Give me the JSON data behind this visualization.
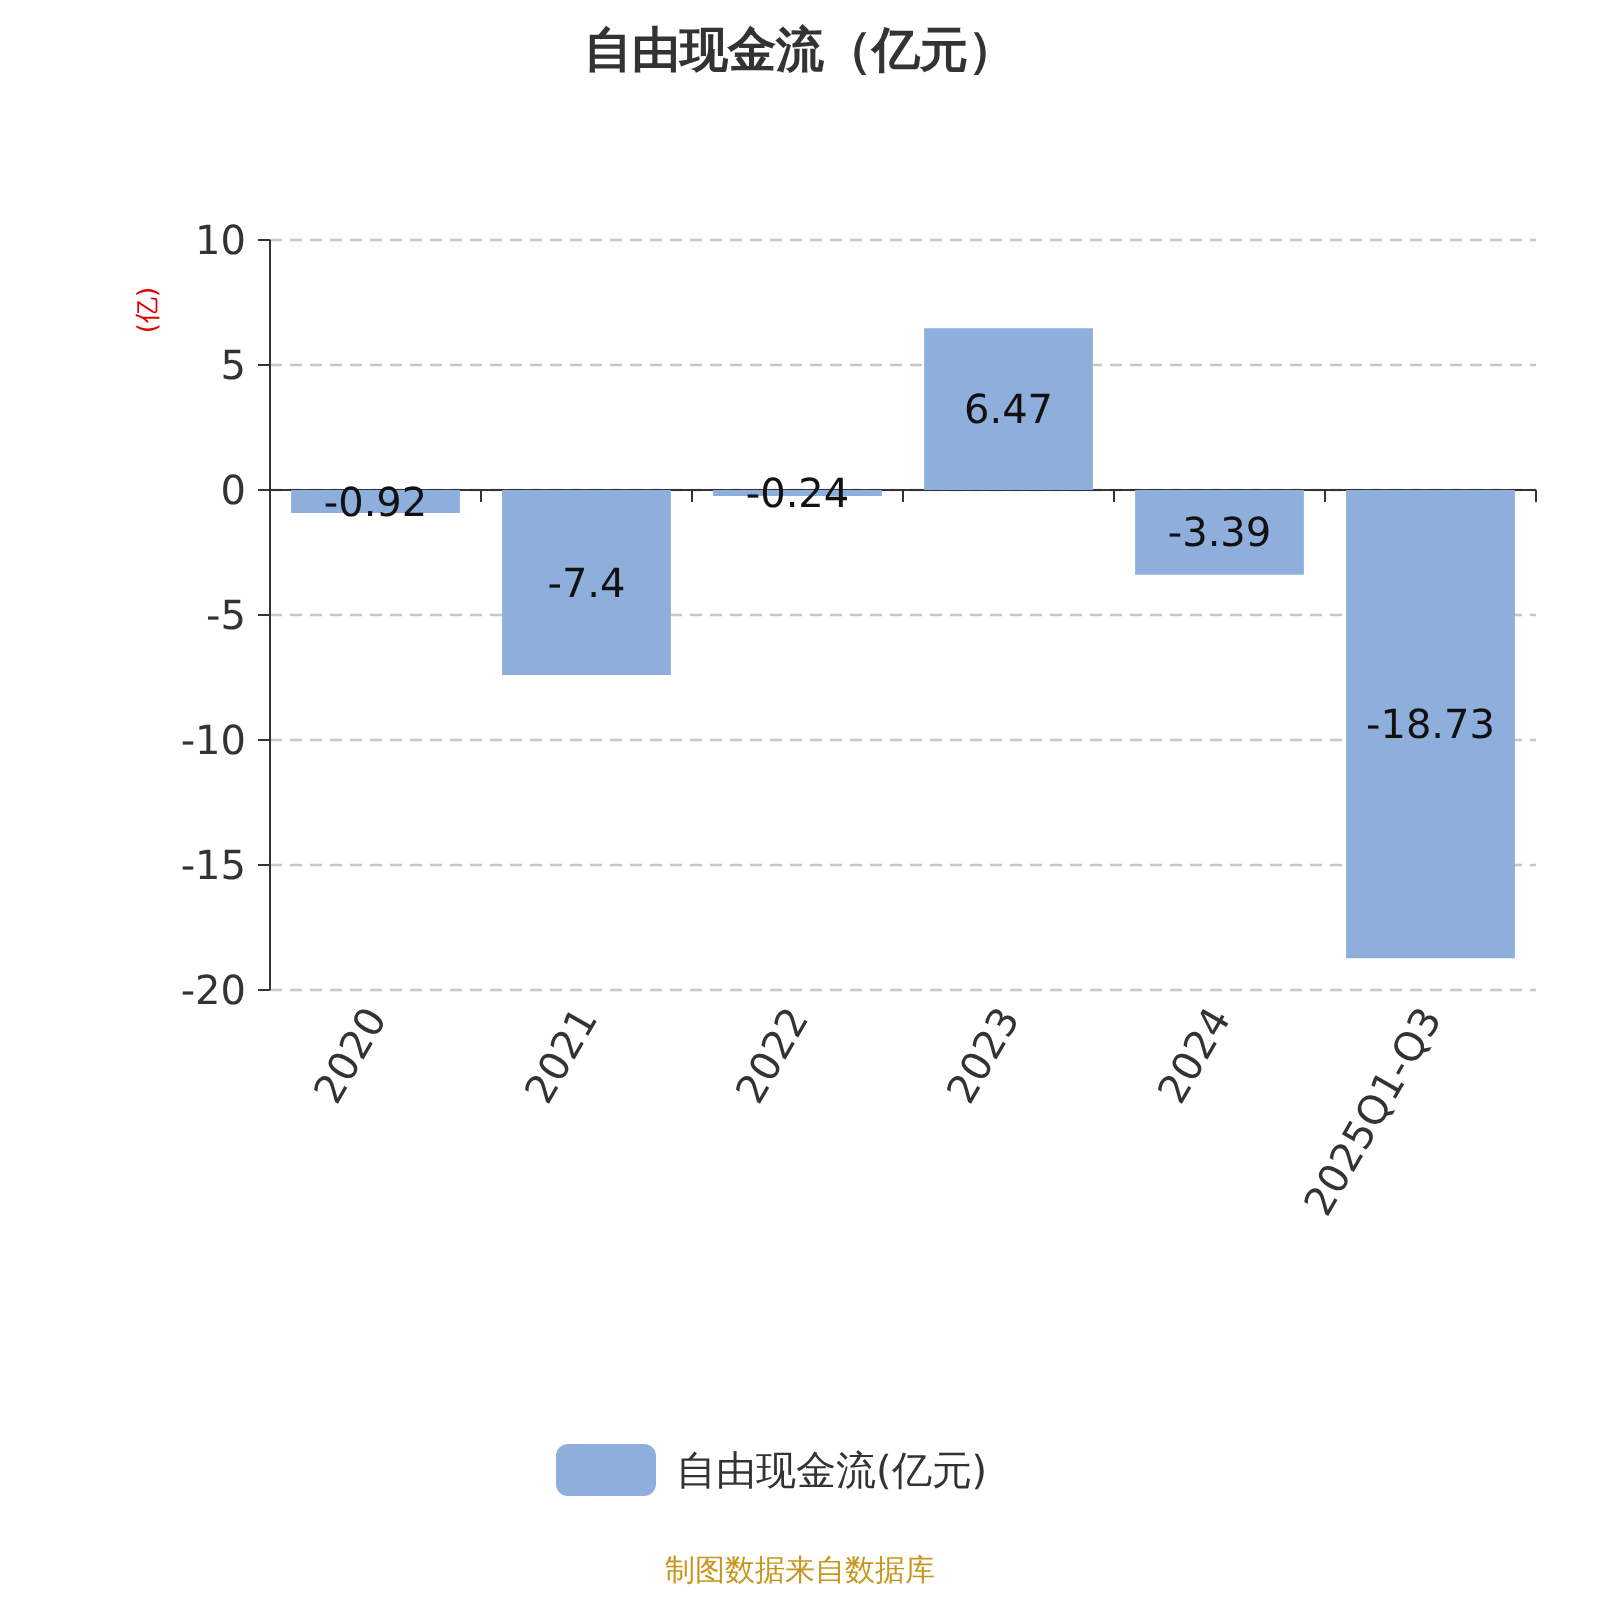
{
  "chart_data": {
    "type": "bar",
    "title": "自由现金流（亿元）",
    "ylabel": "(亿)",
    "categories": [
      "2020",
      "2021",
      "2022",
      "2023",
      "2024",
      "2025Q1-Q3"
    ],
    "series": [
      {
        "name": "自由现金流(亿元)",
        "color": "#8eaedb",
        "values": [
          -0.92,
          -7.4,
          -0.24,
          6.47,
          -3.39,
          -18.73
        ]
      }
    ],
    "ylim": [
      -20,
      10
    ],
    "yticks": [
      -20,
      -15,
      -10,
      -5,
      0,
      5,
      10
    ],
    "grid": "y",
    "legend": "bottom",
    "data_labels": true,
    "annotations": [
      "制图数据来自数据库"
    ]
  }
}
